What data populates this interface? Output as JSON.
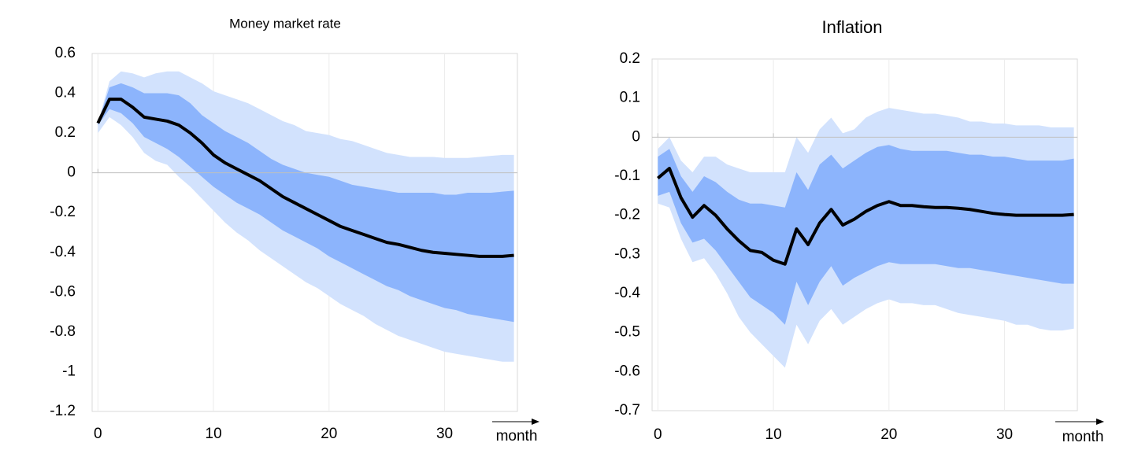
{
  "chart_data": [
    {
      "type": "line",
      "title": "Money market rate",
      "x_label": "month",
      "x": [
        0,
        1,
        2,
        3,
        4,
        5,
        6,
        7,
        8,
        9,
        10,
        11,
        12,
        13,
        14,
        15,
        16,
        17,
        18,
        19,
        20,
        21,
        22,
        23,
        24,
        25,
        26,
        27,
        28,
        29,
        30,
        31,
        32,
        33,
        34,
        35,
        36
      ],
      "xlim": [
        -0.5,
        36.3
      ],
      "xticks": [
        0,
        10,
        20,
        30
      ],
      "ylim": [
        -1.2,
        0.6
      ],
      "yticks": [
        -1.2,
        -1,
        -0.8,
        -0.6,
        -0.4,
        -0.2,
        0,
        0.2,
        0.4,
        0.6
      ],
      "bands": [
        {
          "color": "#d2e2fd",
          "upper": [
            0.25,
            0.46,
            0.51,
            0.5,
            0.48,
            0.5,
            0.51,
            0.51,
            0.48,
            0.45,
            0.41,
            0.39,
            0.37,
            0.35,
            0.32,
            0.29,
            0.26,
            0.24,
            0.21,
            0.2,
            0.19,
            0.17,
            0.16,
            0.14,
            0.12,
            0.1,
            0.09,
            0.08,
            0.08,
            0.08,
            0.075,
            0.075,
            0.075,
            0.08,
            0.085,
            0.09,
            0.09
          ],
          "lower": [
            0.2,
            0.28,
            0.24,
            0.18,
            0.1,
            0.06,
            0.04,
            -0.02,
            -0.07,
            -0.13,
            -0.19,
            -0.25,
            -0.3,
            -0.34,
            -0.39,
            -0.43,
            -0.47,
            -0.51,
            -0.55,
            -0.58,
            -0.62,
            -0.66,
            -0.69,
            -0.72,
            -0.76,
            -0.79,
            -0.82,
            -0.84,
            -0.86,
            -0.88,
            -0.9,
            -0.91,
            -0.92,
            -0.93,
            -0.94,
            -0.95,
            -0.95
          ]
        },
        {
          "color": "#8cb4fc",
          "upper": [
            0.25,
            0.43,
            0.45,
            0.43,
            0.4,
            0.4,
            0.4,
            0.39,
            0.35,
            0.29,
            0.25,
            0.21,
            0.18,
            0.15,
            0.11,
            0.07,
            0.04,
            0.02,
            0,
            -0.01,
            -0.02,
            -0.04,
            -0.06,
            -0.07,
            -0.08,
            -0.09,
            -0.1,
            -0.1,
            -0.1,
            -0.1,
            -0.11,
            -0.11,
            -0.1,
            -0.1,
            -0.1,
            -0.095,
            -0.09
          ],
          "lower": [
            0.24,
            0.32,
            0.3,
            0.25,
            0.18,
            0.15,
            0.12,
            0.08,
            0.03,
            -0.02,
            -0.07,
            -0.11,
            -0.15,
            -0.18,
            -0.21,
            -0.25,
            -0.29,
            -0.32,
            -0.35,
            -0.38,
            -0.42,
            -0.45,
            -0.48,
            -0.51,
            -0.54,
            -0.57,
            -0.59,
            -0.62,
            -0.64,
            -0.66,
            -0.68,
            -0.69,
            -0.71,
            -0.72,
            -0.73,
            -0.74,
            -0.75
          ]
        }
      ],
      "series": [
        {
          "color": "#000000",
          "values": [
            0.25,
            0.37,
            0.37,
            0.33,
            0.28,
            0.27,
            0.26,
            0.24,
            0.2,
            0.15,
            0.09,
            0.05,
            0.02,
            -0.01,
            -0.04,
            -0.08,
            -0.12,
            -0.15,
            -0.18,
            -0.21,
            -0.24,
            -0.27,
            -0.29,
            -0.31,
            -0.33,
            -0.35,
            -0.36,
            -0.375,
            -0.39,
            -0.4,
            -0.405,
            -0.41,
            -0.415,
            -0.42,
            -0.42,
            -0.42,
            -0.415
          ]
        }
      ]
    },
    {
      "type": "line",
      "title": "Inflation",
      "x_label": "month",
      "x": [
        0,
        1,
        2,
        3,
        4,
        5,
        6,
        7,
        8,
        9,
        10,
        11,
        12,
        13,
        14,
        15,
        16,
        17,
        18,
        19,
        20,
        21,
        22,
        23,
        24,
        25,
        26,
        27,
        28,
        29,
        30,
        31,
        32,
        33,
        34,
        35,
        36
      ],
      "xlim": [
        -0.5,
        36.3
      ],
      "xticks": [
        0,
        10,
        20,
        30
      ],
      "ylim": [
        -0.7,
        0.2
      ],
      "yticks": [
        -0.7,
        -0.6,
        -0.5,
        -0.4,
        -0.3,
        -0.2,
        -0.1,
        0,
        0.1,
        0.2
      ],
      "bands": [
        {
          "color": "#d2e2fd",
          "upper": [
            -0.03,
            0,
            -0.06,
            -0.09,
            -0.05,
            -0.05,
            -0.07,
            -0.08,
            -0.09,
            -0.09,
            -0.09,
            -0.09,
            0,
            -0.04,
            0.02,
            0.05,
            0.01,
            0.02,
            0.05,
            0.065,
            0.075,
            0.07,
            0.065,
            0.06,
            0.06,
            0.055,
            0.05,
            0.04,
            0.04,
            0.035,
            0.035,
            0.03,
            0.03,
            0.03,
            0.025,
            0.025,
            0.025
          ],
          "lower": [
            -0.17,
            -0.18,
            -0.26,
            -0.32,
            -0.31,
            -0.35,
            -0.4,
            -0.46,
            -0.5,
            -0.53,
            -0.56,
            -0.59,
            -0.48,
            -0.53,
            -0.47,
            -0.44,
            -0.48,
            -0.46,
            -0.44,
            -0.425,
            -0.415,
            -0.425,
            -0.425,
            -0.43,
            -0.43,
            -0.44,
            -0.45,
            -0.455,
            -0.46,
            -0.465,
            -0.47,
            -0.48,
            -0.48,
            -0.49,
            -0.495,
            -0.495,
            -0.49
          ]
        },
        {
          "color": "#8cb4fc",
          "upper": [
            -0.05,
            -0.03,
            -0.1,
            -0.14,
            -0.1,
            -0.115,
            -0.14,
            -0.16,
            -0.17,
            -0.17,
            -0.175,
            -0.18,
            -0.09,
            -0.135,
            -0.07,
            -0.045,
            -0.08,
            -0.06,
            -0.04,
            -0.025,
            -0.02,
            -0.03,
            -0.035,
            -0.035,
            -0.035,
            -0.035,
            -0.04,
            -0.045,
            -0.045,
            -0.05,
            -0.05,
            -0.055,
            -0.06,
            -0.06,
            -0.06,
            -0.06,
            -0.055
          ],
          "lower": [
            -0.15,
            -0.14,
            -0.22,
            -0.27,
            -0.26,
            -0.29,
            -0.33,
            -0.37,
            -0.41,
            -0.43,
            -0.45,
            -0.48,
            -0.37,
            -0.43,
            -0.37,
            -0.33,
            -0.38,
            -0.36,
            -0.345,
            -0.33,
            -0.32,
            -0.325,
            -0.325,
            -0.325,
            -0.325,
            -0.33,
            -0.335,
            -0.335,
            -0.34,
            -0.345,
            -0.35,
            -0.355,
            -0.36,
            -0.365,
            -0.37,
            -0.375,
            -0.375
          ]
        }
      ],
      "series": [
        {
          "color": "#000000",
          "values": [
            -0.105,
            -0.08,
            -0.155,
            -0.205,
            -0.175,
            -0.2,
            -0.235,
            -0.265,
            -0.29,
            -0.295,
            -0.315,
            -0.325,
            -0.235,
            -0.275,
            -0.22,
            -0.185,
            -0.225,
            -0.21,
            -0.19,
            -0.175,
            -0.165,
            -0.175,
            -0.175,
            -0.178,
            -0.18,
            -0.18,
            -0.182,
            -0.185,
            -0.19,
            -0.195,
            -0.198,
            -0.2,
            -0.2,
            -0.2,
            -0.2,
            -0.2,
            -0.198
          ]
        }
      ]
    }
  ]
}
